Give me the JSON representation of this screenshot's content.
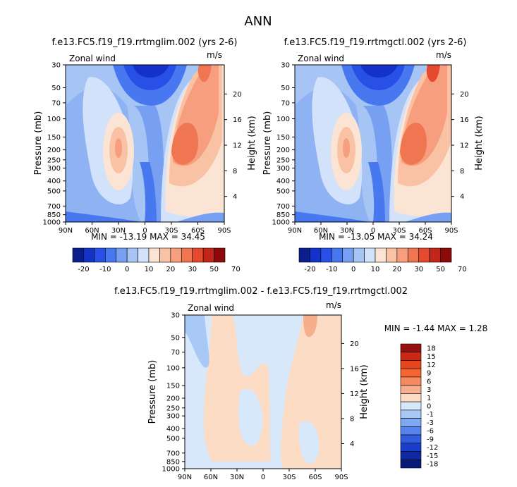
{
  "figure": {
    "title": "ANN"
  },
  "panels": [
    {
      "case_title": "f.e13.FC5.f19_f19.rrtmglim.002 (yrs 2-6)",
      "variable": "Zonal wind",
      "units": "m/s",
      "ylabel": "Pressure (mb)",
      "ylabel_right": "Height (km)",
      "stats": "MIN = -13.19   MAX =  34.45"
    },
    {
      "case_title": "f.e13.FC5.f19_f19.rrtmgctl.002 (yrs 2-6)",
      "variable": "Zonal wind",
      "units": "m/s",
      "ylabel": "Pressure (mb)",
      "ylabel_right": "Height (km)",
      "stats": "MIN = -13.05   MAX =  34.24"
    },
    {
      "case_title": "f.e13.FC5.f19_f19.rrtmglim.002 - f.e13.FC5.f19_f19.rrtmgctl.002",
      "variable": "Zonal wind",
      "units": "m/s",
      "ylabel": "Pressure (mb)",
      "ylabel_right": "Height (km)",
      "stats": "MIN =   -1.44   MAX =    1.28"
    }
  ],
  "chart_data": [
    {
      "type": "heatmap",
      "title": "f.e13.FC5.f19_f19.rrtmglim.002 (yrs 2-6)",
      "xlabel": "",
      "ylabel": "Pressure (mb)",
      "x_ticks": [
        "90N",
        "60N",
        "30N",
        "0",
        "30S",
        "60S",
        "90S"
      ],
      "y_ticks": [
        30,
        50,
        70,
        100,
        150,
        200,
        250,
        300,
        400,
        500,
        700,
        850,
        1000
      ],
      "y2_ticks": [
        4,
        8,
        12,
        16,
        20
      ],
      "ylim": [
        1000,
        30
      ],
      "colorbar_levels": [
        -20,
        -10,
        0,
        10,
        20,
        30,
        50,
        70
      ],
      "min": -13.19,
      "max": 34.45,
      "features": [
        {
          "label": "easterly core 90N-0 upper",
          "lat": 45,
          "p": 40,
          "value": -13
        },
        {
          "label": "northern westerly jet",
          "lat": 35,
          "p": 200,
          "value": 15
        },
        {
          "label": "southern westerly jet",
          "lat": -35,
          "p": 200,
          "value": 30
        },
        {
          "label": "southern stratospheric jet",
          "lat": -60,
          "p": 30,
          "value": 34
        }
      ]
    },
    {
      "type": "heatmap",
      "title": "f.e13.FC5.f19_f19.rrtmgctl.002 (yrs 2-6)",
      "xlabel": "",
      "ylabel": "Pressure (mb)",
      "x_ticks": [
        "90N",
        "60N",
        "30N",
        "0",
        "30S",
        "60S",
        "90S"
      ],
      "y_ticks": [
        30,
        50,
        70,
        100,
        150,
        200,
        250,
        300,
        400,
        500,
        700,
        850,
        1000
      ],
      "y2_ticks": [
        4,
        8,
        12,
        16,
        20
      ],
      "ylim": [
        1000,
        30
      ],
      "colorbar_levels": [
        -20,
        -10,
        0,
        10,
        20,
        30,
        50,
        70
      ],
      "min": -13.05,
      "max": 34.24,
      "features": [
        {
          "label": "easterly core 90N-0 upper",
          "lat": 45,
          "p": 40,
          "value": -13
        },
        {
          "label": "northern westerly jet",
          "lat": 35,
          "p": 200,
          "value": 15
        },
        {
          "label": "southern westerly jet",
          "lat": -35,
          "p": 200,
          "value": 30
        },
        {
          "label": "southern stratospheric jet",
          "lat": -60,
          "p": 30,
          "value": 34
        }
      ]
    },
    {
      "type": "heatmap",
      "title": "f.e13.FC5.f19_f19.rrtmglim.002 - f.e13.FC5.f19_f19.rrtmgctl.002",
      "xlabel": "",
      "ylabel": "Pressure (mb)",
      "x_ticks": [
        "90N",
        "60N",
        "30N",
        "0",
        "30S",
        "60S",
        "90S"
      ],
      "y_ticks": [
        30,
        50,
        70,
        100,
        150,
        200,
        250,
        300,
        400,
        500,
        700,
        850,
        1000
      ],
      "y2_ticks": [
        4,
        8,
        12,
        16,
        20
      ],
      "ylim": [
        1000,
        30
      ],
      "colorbar_levels": [
        18,
        15,
        12,
        9,
        6,
        3,
        1,
        0,
        -1,
        -3,
        -6,
        -9,
        -12,
        -15,
        -18
      ],
      "min": -1.44,
      "max": 1.28,
      "features": [
        {
          "label": "weak negative band",
          "lat": 70,
          "p": 200,
          "value": -1
        },
        {
          "label": "weak negative band",
          "lat": 10,
          "p": 200,
          "value": -1
        },
        {
          "label": "weak positive upper",
          "lat": -60,
          "p": 30,
          "value": 1
        }
      ]
    }
  ],
  "colors": {
    "seq_top": [
      "#0a1e8c",
      "#1432c8",
      "#2850e6",
      "#4878f0",
      "#78a0f2",
      "#a6c4f4",
      "#d2e2fa",
      "#fbe4d4",
      "#f9c2a4",
      "#f69e7e",
      "#f07652",
      "#e64a2e",
      "#c2261a",
      "#8c0a0a"
    ],
    "diff": [
      "#960f0f",
      "#c82814",
      "#e6461e",
      "#f56432",
      "#f58a5f",
      "#f7ae8c",
      "#fcdcc4",
      "#d8e8fb",
      "#a8c8f5",
      "#80a8f2",
      "#5582ec",
      "#2f5ddd",
      "#1a3ec8",
      "#0f29a3",
      "#081a78"
    ]
  }
}
